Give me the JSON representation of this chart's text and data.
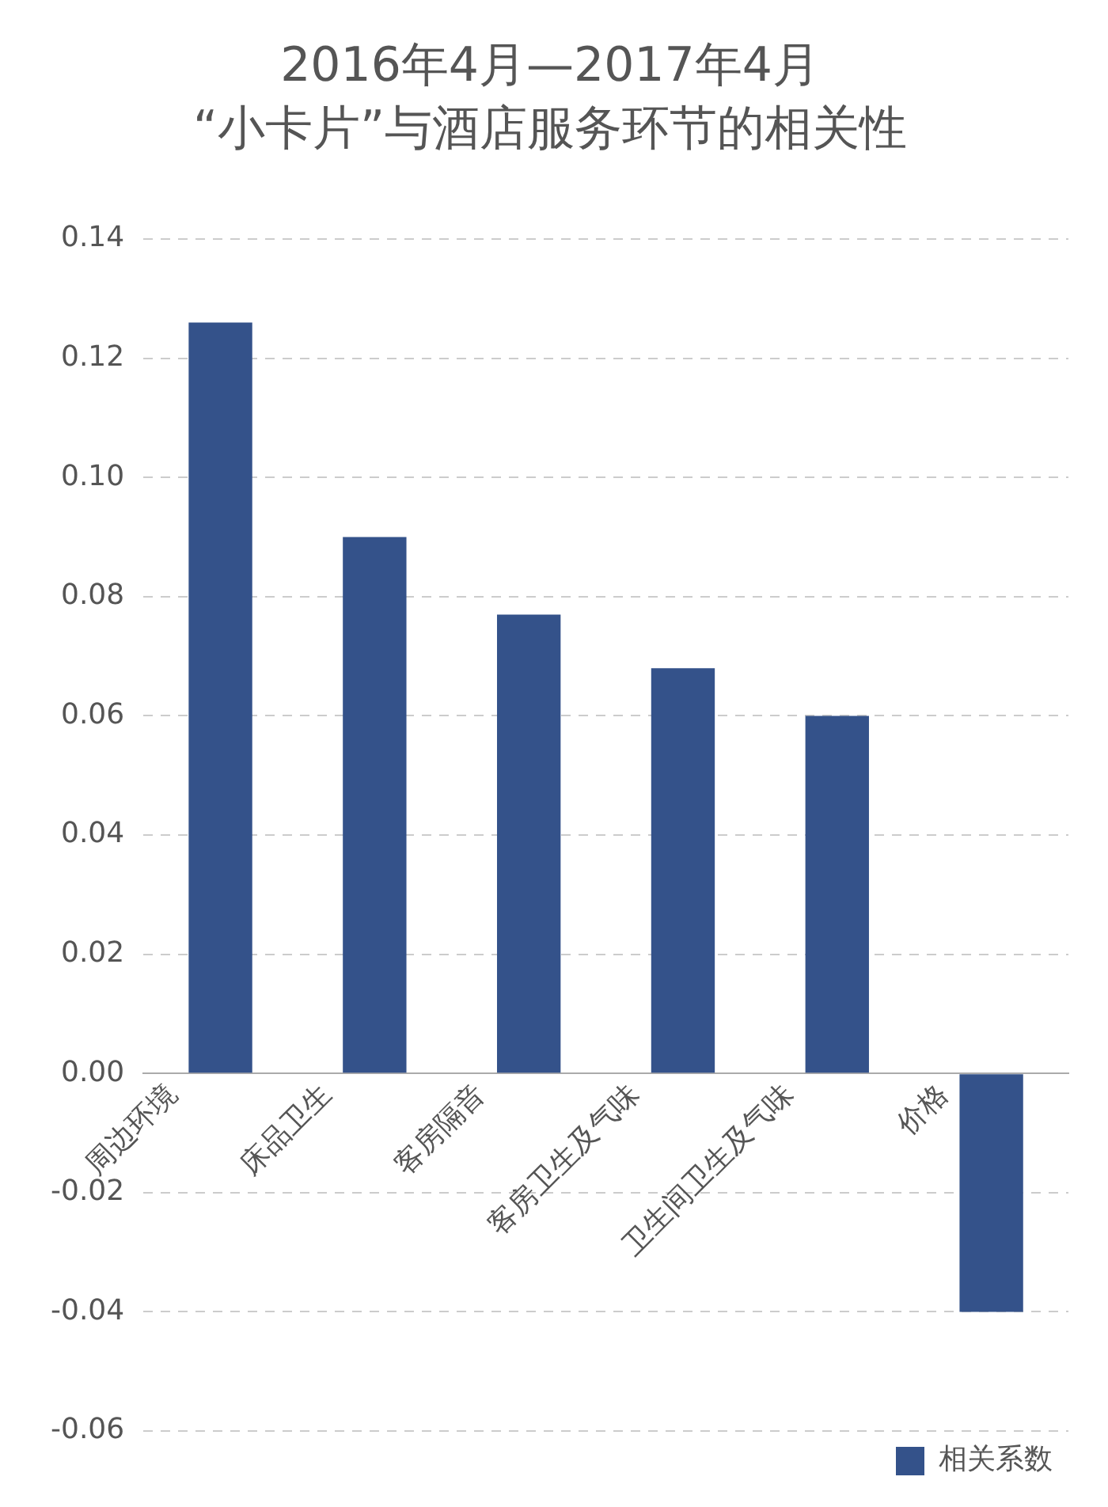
{
  "chart_data": {
    "type": "bar",
    "title": "2016年4月—2017年4月",
    "subtitle": "“小卡片”与酒店服务环节的相关性",
    "categories": [
      "周边环境",
      "床品卫生",
      "客房隔音",
      "客房卫生及气味",
      "卫生间卫生及气味",
      "价格"
    ],
    "series": [
      {
        "name": "相关系数",
        "color": "#34528a",
        "values": [
          0.126,
          0.09,
          0.077,
          0.068,
          0.06,
          -0.04
        ]
      }
    ],
    "ylim": [
      -0.06,
      0.14
    ],
    "yticks": [
      0.14,
      0.12,
      {
        "value": 0.1,
        "label": "0.10"
      },
      0.08,
      0.06,
      0.04,
      0.02,
      {
        "value": 0,
        "label": "0.00"
      },
      -0.02,
      -0.04,
      -0.06
    ],
    "grid": "y",
    "legend": "bottom right"
  }
}
